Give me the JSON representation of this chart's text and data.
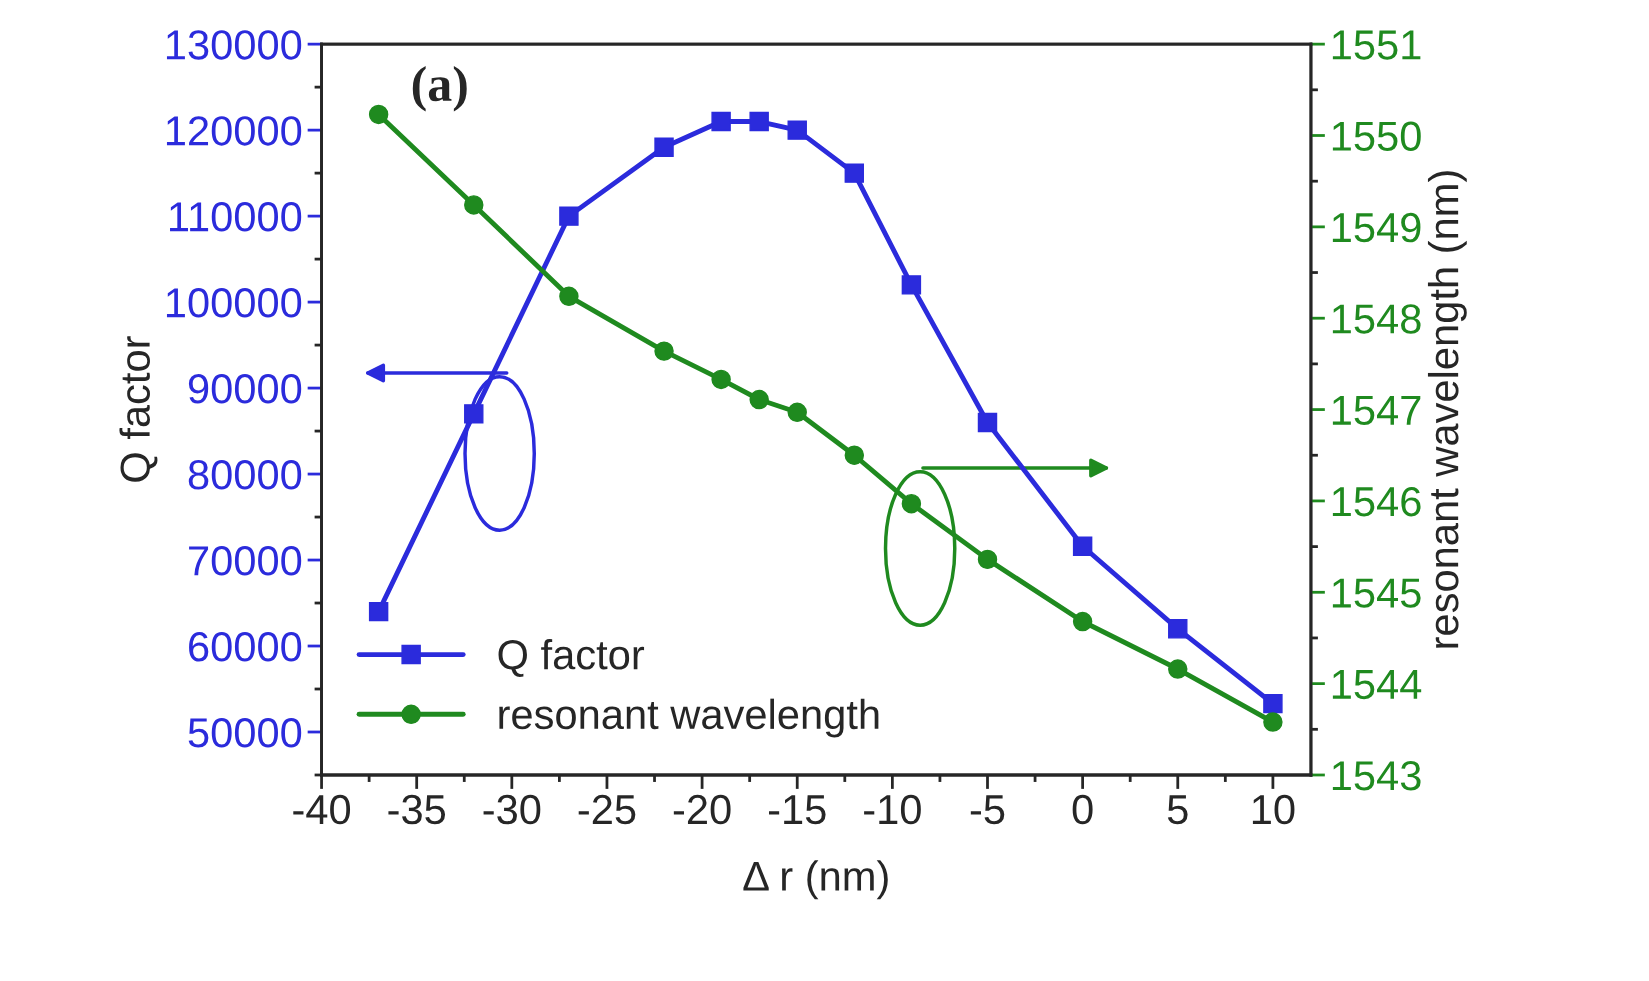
{
  "chart_data": {
    "type": "line",
    "xlabel": "Δ r (nm)",
    "ylabel": "Q factor",
    "y2label": "resonant wavelength (nm)",
    "annotations": [
      "(a)"
    ],
    "x": [
      -37,
      -32,
      -27,
      -22,
      -19,
      -17,
      -15,
      -12,
      -9,
      -5,
      0,
      5,
      10
    ],
    "series": [
      {
        "name": "Q factor",
        "color": "#2b2bdc",
        "marker": "square",
        "values": [
          64000,
          87000,
          110000,
          118000,
          121000,
          121000,
          120000,
          115000,
          102000,
          86000,
          71600,
          62000,
          53300
        ]
      },
      {
        "name": "resonant wavelength",
        "color": "#1f8a1f",
        "marker": "circle",
        "axis": "y2",
        "values": [
          1550.23,
          1549.24,
          1548.24,
          1547.64,
          1547.33,
          1547.11,
          1546.97,
          1546.5,
          1545.97,
          1545.36,
          1544.68,
          1544.16,
          1543.58
        ]
      }
    ],
    "xlim": [
      -40,
      12
    ],
    "xticks": [
      -40,
      -35,
      -30,
      -25,
      -20,
      -15,
      -10,
      -5,
      0,
      5,
      10
    ],
    "ylim": [
      45000,
      130000
    ],
    "yticks": [
      50000,
      60000,
      70000,
      80000,
      90000,
      100000,
      110000,
      120000,
      130000
    ],
    "y2lim": [
      1543,
      1551
    ],
    "y2ticks": [
      1543,
      1544,
      1545,
      1546,
      1547,
      1548,
      1549,
      1550,
      1551
    ],
    "legend": "bottom left",
    "grid": false,
    "line_style": "solid"
  }
}
